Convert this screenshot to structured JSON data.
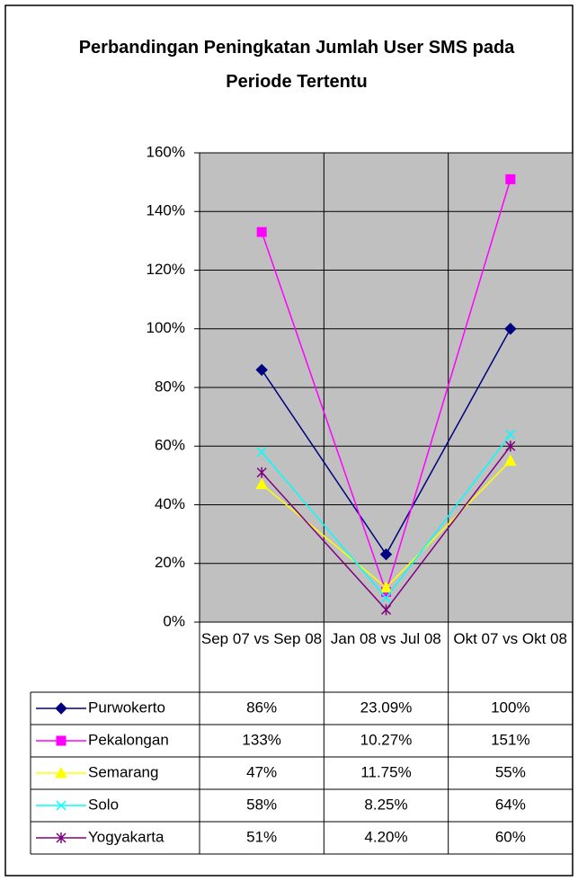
{
  "chart_data": {
    "type": "line",
    "title": "Perbandingan Peningkatan Jumlah User SMS pada Periode Tertentu",
    "categories": [
      "Sep 07 vs Sep 08",
      "Jan 08 vs Jul 08",
      "Okt 07 vs Okt 08"
    ],
    "series": [
      {
        "name": "Purwokerto",
        "color": "#000080",
        "marker": "diamond",
        "values": [
          86,
          23.09,
          100
        ],
        "value_labels": [
          "86%",
          "23.09%",
          "100%"
        ]
      },
      {
        "name": "Pekalongan",
        "color": "#ff00ff",
        "marker": "square",
        "values": [
          133,
          10.27,
          151
        ],
        "value_labels": [
          "133%",
          "10.27%",
          "151%"
        ]
      },
      {
        "name": "Semarang",
        "color": "#ffff00",
        "marker": "triangle",
        "values": [
          47,
          11.75,
          55
        ],
        "value_labels": [
          "47%",
          "11.75%",
          "55%"
        ]
      },
      {
        "name": "Solo",
        "color": "#00ffff",
        "marker": "x",
        "values": [
          58,
          8.25,
          64
        ],
        "value_labels": [
          "58%",
          "8.25%",
          "64%"
        ]
      },
      {
        "name": "Yogyakarta",
        "color": "#800080",
        "marker": "star",
        "values": [
          51,
          4.2,
          60
        ],
        "value_labels": [
          "51%",
          "4.20%",
          "60%"
        ]
      }
    ],
    "ylim": [
      0,
      160
    ],
    "yticks": [
      {
        "value": 0,
        "label": "0%"
      },
      {
        "value": 20,
        "label": "20%"
      },
      {
        "value": 40,
        "label": "40%"
      },
      {
        "value": 60,
        "label": "60%"
      },
      {
        "value": 80,
        "label": "80%"
      },
      {
        "value": 100,
        "label": "100%"
      },
      {
        "value": 120,
        "label": "120%"
      },
      {
        "value": 140,
        "label": "140%"
      },
      {
        "value": 160,
        "label": "160%"
      }
    ],
    "grid": true
  }
}
